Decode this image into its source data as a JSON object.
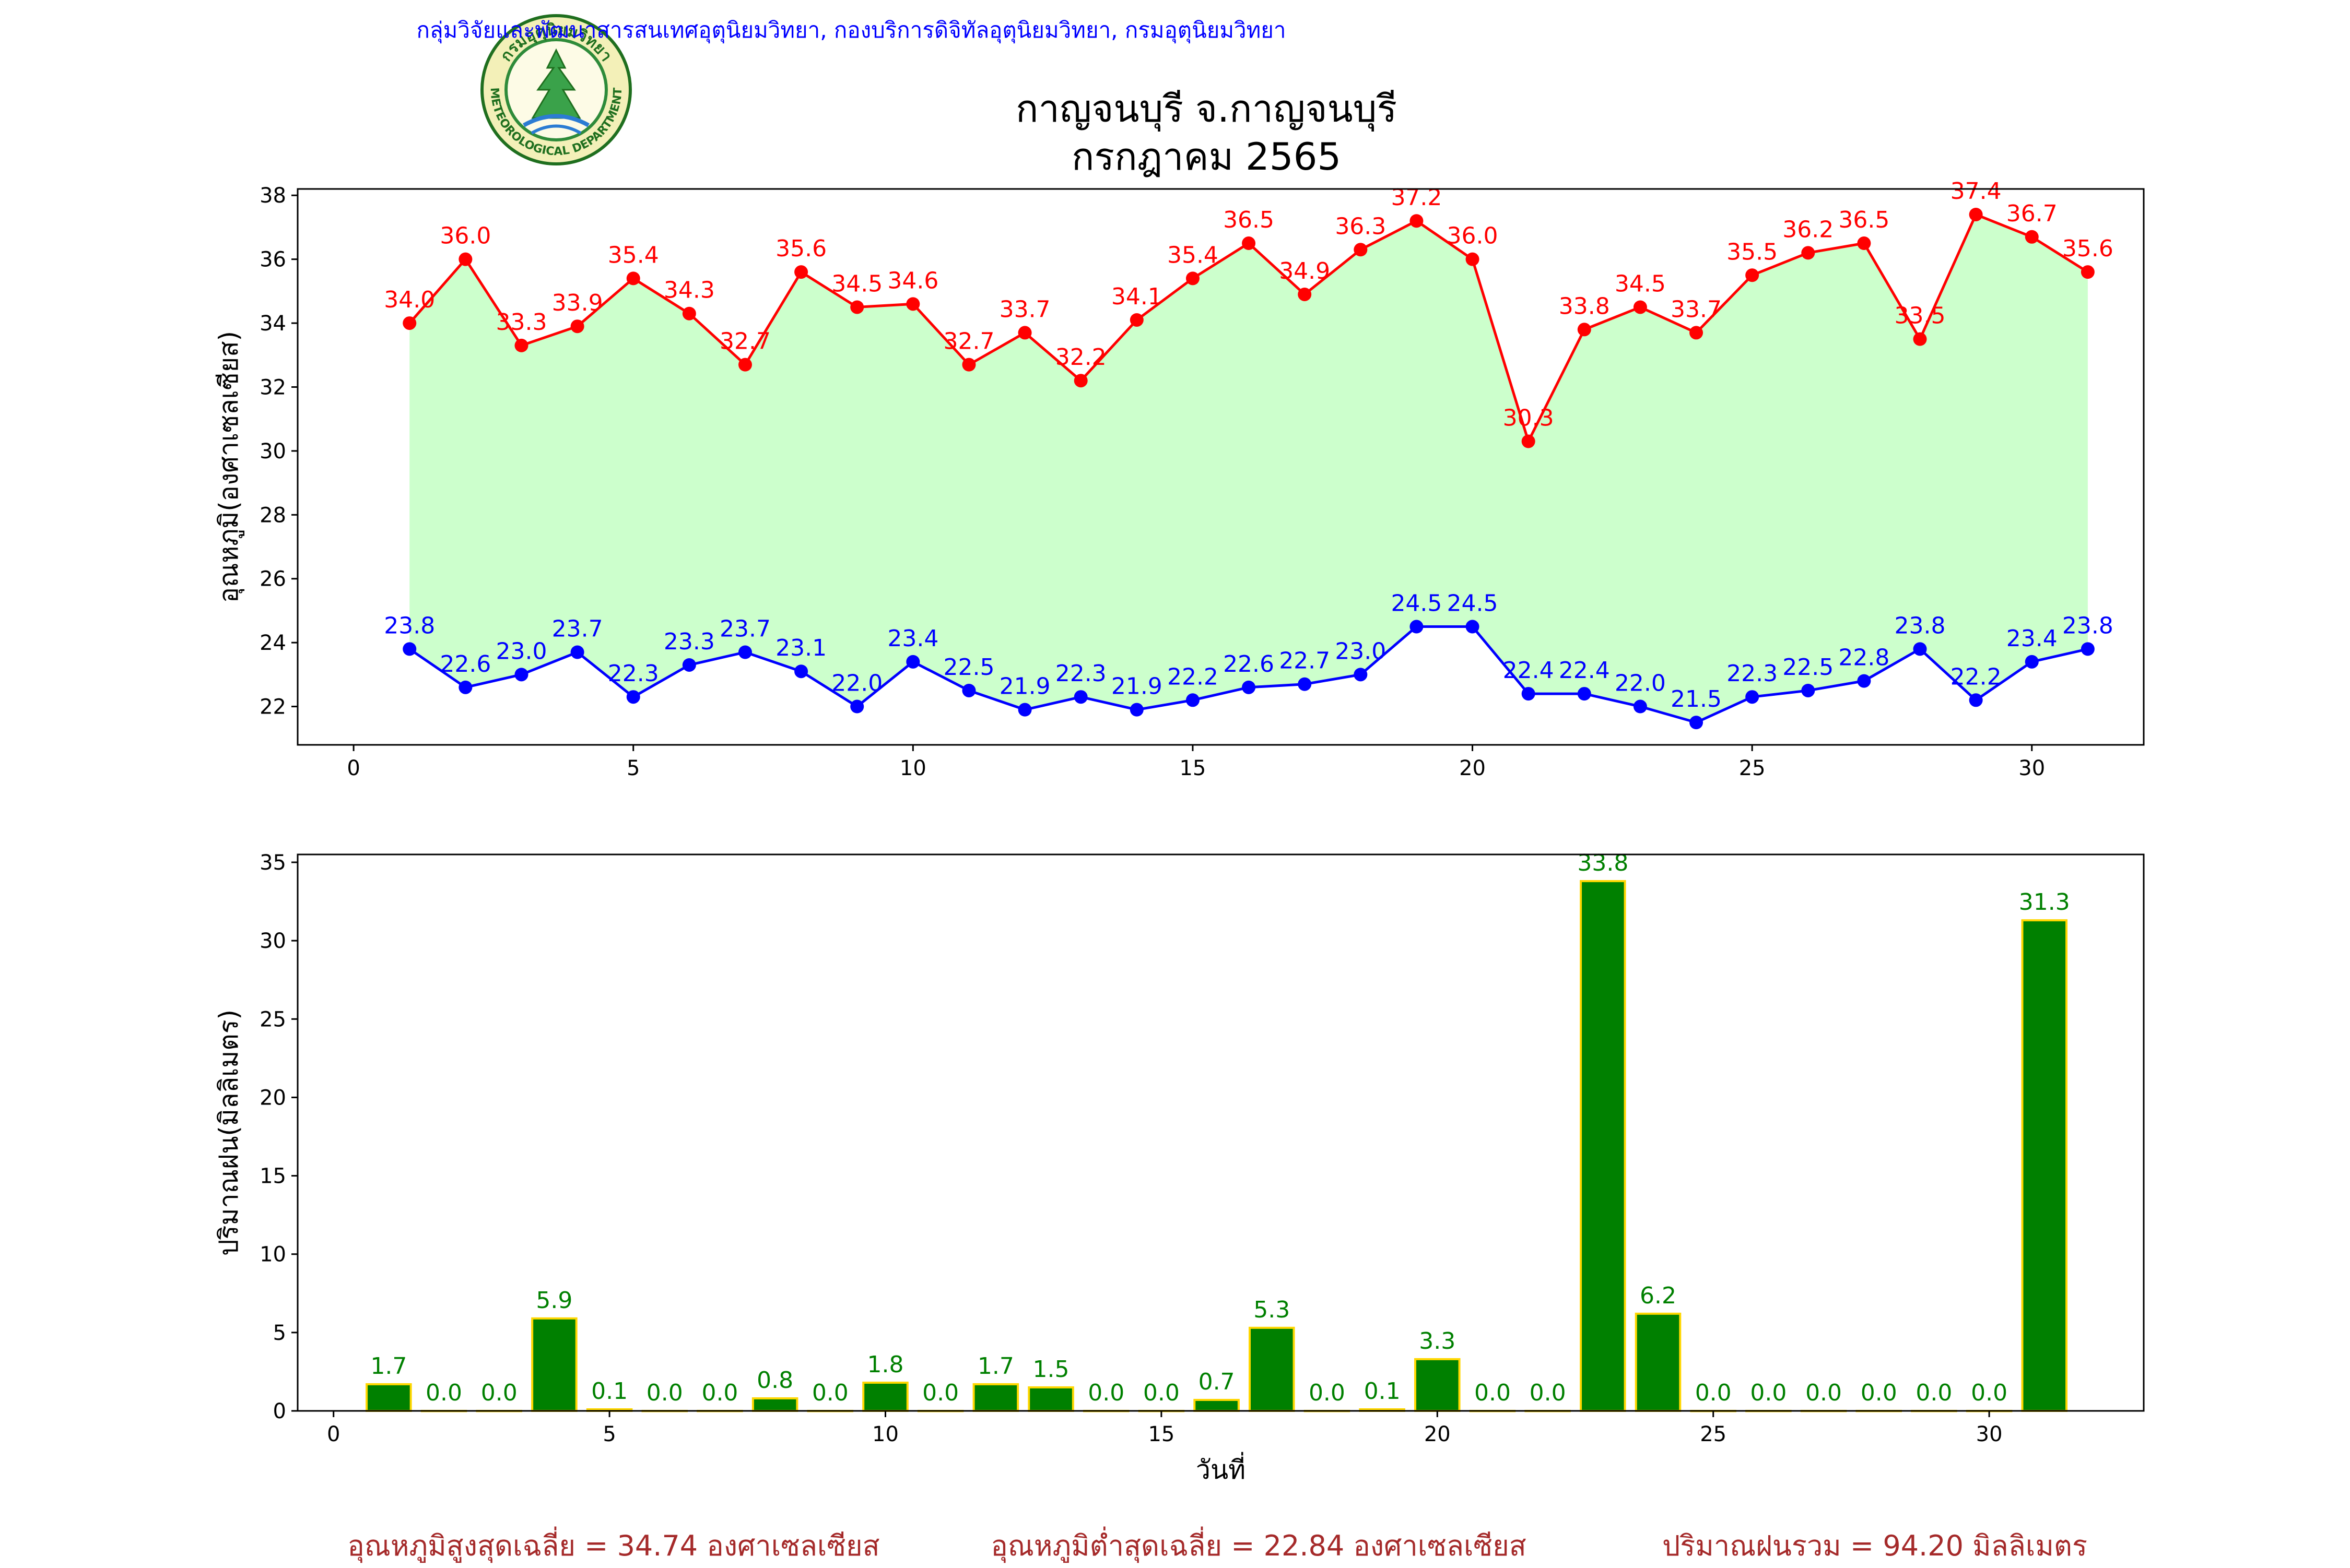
{
  "header": {
    "agency_line": "กลุ่มวิจัยและพัฒนาสารสนเทศอุตุนิยมวิทยา, กองบริการดิจิทัลอุตุนิยมวิทยา, กรมอุตุนิยมวิทยา",
    "logo_top_text": "กรมอุตุนิยมวิทยา",
    "logo_bottom_text": "METEOROLOGICAL DEPARTMENT",
    "title_line1": "กาญจนบุรี จ.กาญจนบุรี",
    "title_line2": "กรกฎาคม 2565"
  },
  "summary": {
    "avg_max": "อุณหภูมิสูงสุดเฉลี่ย = 34.74 องศาเซลเซียส",
    "avg_min": "อุณหภูมิต่ำสุดเฉลี่ย = 22.84 องศาเซลเซียส",
    "total_rain": "ปริมาณฝนรวม = 94.20 มิลลิเมตร"
  },
  "colors": {
    "max": "#ff0000",
    "min": "#0000ff",
    "fill": "#ccffcc",
    "bar": "#008000",
    "bar_edge": "#ffd700",
    "bar_label": "#008000",
    "summary": "#a52a2a",
    "agency": "#0000ff"
  },
  "chart_data": [
    {
      "type": "line",
      "ylabel": "อุณหภูมิ(องศาเซลเซียส)",
      "xlabel": "",
      "xlim": [
        -1,
        32
      ],
      "ylim": [
        20.8,
        38.2
      ],
      "xticks": [
        0,
        5,
        10,
        15,
        20,
        25,
        30
      ],
      "yticks": [
        22,
        24,
        26,
        28,
        30,
        32,
        34,
        36,
        38
      ],
      "x": [
        1,
        2,
        3,
        4,
        5,
        6,
        7,
        8,
        9,
        10,
        11,
        12,
        13,
        14,
        15,
        16,
        17,
        18,
        19,
        20,
        21,
        22,
        23,
        24,
        25,
        26,
        27,
        28,
        29,
        30,
        31
      ],
      "series": [
        {
          "values": [
            34.0,
            36.0,
            33.3,
            33.9,
            35.4,
            34.3,
            32.7,
            35.6,
            34.5,
            34.6,
            32.7,
            33.7,
            32.2,
            34.1,
            35.4,
            36.5,
            34.9,
            36.3,
            37.2,
            36.0,
            30.3,
            33.8,
            34.5,
            33.7,
            35.5,
            36.2,
            36.5,
            33.5,
            37.4,
            36.7,
            35.6
          ],
          "labels": [
            "34.0",
            "36.0",
            "33.3",
            "33.9",
            "35.4",
            "34.3",
            "32.7",
            "35.6",
            "34.5",
            "34.6",
            "32.7",
            "33.7",
            "32.2",
            "34.1",
            "35.4",
            "36.5",
            "34.9",
            "36.3",
            "37.2",
            "36.0",
            "30.3",
            "33.8",
            "34.5",
            "33.7",
            "35.5",
            "36.2",
            "36.5",
            "33.5",
            "37.4",
            "36.7",
            "35.6"
          ]
        },
        {
          "values": [
            23.8,
            22.6,
            23.0,
            23.7,
            22.3,
            23.3,
            23.7,
            23.1,
            22.0,
            23.4,
            22.5,
            21.9,
            22.3,
            21.9,
            22.2,
            22.6,
            22.7,
            23.0,
            24.5,
            24.5,
            22.4,
            22.4,
            22.0,
            21.5,
            22.3,
            22.5,
            22.8,
            23.8,
            22.2,
            23.4,
            23.8
          ],
          "labels": [
            "23.8",
            "22.6",
            "23.0",
            "23.7",
            "22.3",
            "23.3",
            "23.7",
            "23.1",
            "22.0",
            "23.4",
            "22.5",
            "21.9",
            "22.3",
            "21.9",
            "22.2",
            "22.6",
            "22.7",
            "23.0",
            "24.5",
            "24.5",
            "22.4",
            "22.4",
            "22.0",
            "21.5",
            "22.3",
            "22.5",
            "22.8",
            "23.8",
            "22.2",
            "23.4",
            "23.8"
          ]
        }
      ]
    },
    {
      "type": "bar",
      "ylabel": "ปริมาณฝน(มิลลิเมตร)",
      "xlabel": "วันที่",
      "xlim": [
        -0.65,
        32.8
      ],
      "ylim": [
        0,
        35.5
      ],
      "xticks": [
        0,
        5,
        10,
        15,
        20,
        25,
        30
      ],
      "yticks": [
        0,
        5,
        10,
        15,
        20,
        25,
        30,
        35
      ],
      "x": [
        1,
        2,
        3,
        4,
        5,
        6,
        7,
        8,
        9,
        10,
        11,
        12,
        13,
        14,
        15,
        16,
        17,
        18,
        19,
        20,
        21,
        22,
        23,
        24,
        25,
        26,
        27,
        28,
        29,
        30,
        31
      ],
      "values": [
        1.7,
        0.0,
        0.0,
        5.9,
        0.1,
        0.0,
        0.0,
        0.8,
        0.0,
        1.8,
        0.0,
        1.7,
        1.5,
        0.0,
        0.0,
        0.7,
        5.3,
        0.0,
        0.1,
        3.3,
        0.0,
        0.0,
        33.8,
        6.2,
        0.0,
        0.0,
        0.0,
        0.0,
        0.0,
        0.0,
        31.3
      ],
      "labels": [
        "1.7",
        "0.0",
        "0.0",
        "5.9",
        "0.1",
        "0.0",
        "0.0",
        "0.8",
        "0.0",
        "1.8",
        "0.0",
        "1.7",
        "1.5",
        "0.0",
        "0.0",
        "0.7",
        "5.3",
        "0.0",
        "0.1",
        "3.3",
        "0.0",
        "0.0",
        "33.8",
        "6.2",
        "0.0",
        "0.0",
        "0.0",
        "0.0",
        "0.0",
        "0.0",
        "31.3"
      ]
    }
  ]
}
